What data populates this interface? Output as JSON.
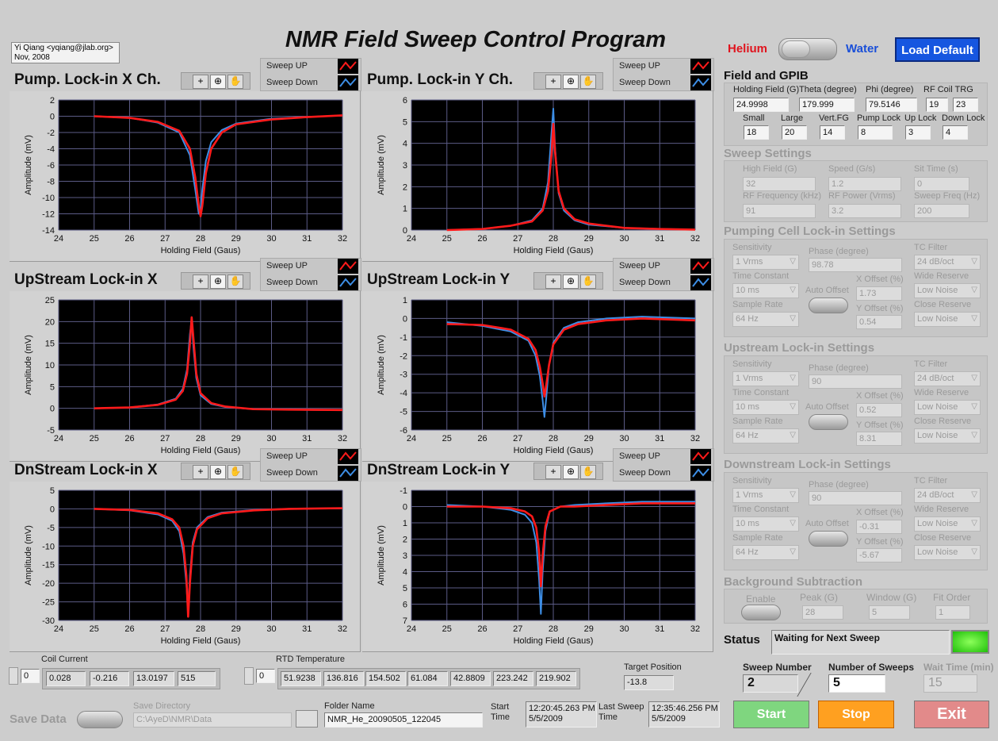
{
  "header": {
    "title": "NMR Field Sweep Control Program",
    "author": "Yi Qiang <yqiang@jlab.org>",
    "date": "Nov, 2008"
  },
  "mode": {
    "helium": "Helium",
    "water": "Water",
    "load_default": "Load Default"
  },
  "plots": [
    {
      "title": "Pump. Lock-in X Ch.",
      "xlabel": "Holding Field (Gaus)",
      "ylabel": "Amplitude (mV)",
      "xlim": [
        24,
        32
      ],
      "xticks": [
        24,
        25,
        26,
        27,
        28,
        29,
        30,
        31,
        32
      ],
      "ylim": [
        -14,
        2
      ],
      "yticks": [
        -14,
        -12,
        -10,
        -8,
        -6,
        -4,
        -2,
        0,
        2
      ],
      "x": [
        25,
        26,
        26.8,
        27.4,
        27.7,
        27.85,
        27.95,
        28,
        28.05,
        28.15,
        28.3,
        28.6,
        29,
        30,
        31,
        32
      ],
      "series": [
        {
          "name": "Sweep UP",
          "color": "#ff1a1a",
          "values": [
            0,
            -0.2,
            -0.7,
            -1.8,
            -4,
            -7.5,
            -11,
            -12.3,
            -11,
            -7,
            -4,
            -2,
            -1,
            -0.4,
            -0.1,
            0.1
          ]
        },
        {
          "name": "Sweep Down",
          "color": "#3d8ee6",
          "values": [
            0,
            -0.2,
            -0.8,
            -2,
            -4.8,
            -9,
            -12,
            -11.5,
            -9,
            -5.5,
            -3.2,
            -1.7,
            -0.9,
            -0.3,
            -0.1,
            0.1
          ]
        }
      ]
    },
    {
      "title": "Pump. Lock-in Y Ch.",
      "xlabel": "Holding Field (Gaus)",
      "ylabel": "Amplitude (mV)",
      "xlim": [
        24,
        32
      ],
      "xticks": [
        24,
        25,
        26,
        27,
        28,
        29,
        30,
        31,
        32
      ],
      "ylim": [
        0,
        6
      ],
      "yticks": [
        0,
        1,
        2,
        3,
        4,
        5,
        6
      ],
      "x": [
        25,
        26,
        26.8,
        27.4,
        27.7,
        27.85,
        27.95,
        28,
        28.05,
        28.15,
        28.3,
        28.6,
        29,
        30,
        31,
        32
      ],
      "series": [
        {
          "name": "Sweep UP",
          "color": "#ff1a1a",
          "values": [
            0,
            0.05,
            0.2,
            0.4,
            0.9,
            1.8,
            3.5,
            4.9,
            3.6,
            1.8,
            1,
            0.5,
            0.3,
            0.1,
            0.05,
            0.02
          ]
        },
        {
          "name": "Sweep Down",
          "color": "#3d8ee6",
          "values": [
            0,
            0.05,
            0.2,
            0.45,
            1,
            2.2,
            4.5,
            5.6,
            3.8,
            1.7,
            0.9,
            0.45,
            0.25,
            0.1,
            0.05,
            0.02
          ]
        }
      ]
    },
    {
      "title": "UpStream Lock-in X",
      "xlabel": "Holding Field (Gaus)",
      "ylabel": "Amplitude (mV)",
      "xlim": [
        24,
        32
      ],
      "xticks": [
        24,
        25,
        26,
        27,
        28,
        29,
        30,
        31,
        32
      ],
      "ylim": [
        -5,
        25
      ],
      "yticks": [
        -5,
        0,
        5,
        10,
        15,
        20,
        25
      ],
      "x": [
        25,
        26,
        26.8,
        27.3,
        27.5,
        27.62,
        27.7,
        27.75,
        27.8,
        27.88,
        28,
        28.3,
        28.7,
        29.5,
        30.5,
        32
      ],
      "series": [
        {
          "name": "Sweep UP",
          "color": "#ff1a1a",
          "values": [
            0,
            0.2,
            0.8,
            2,
            4,
            8,
            15,
            21,
            16,
            8,
            3.5,
            1.2,
            0.4,
            -0.2,
            -0.3,
            -0.4
          ]
        },
        {
          "name": "Sweep Down",
          "color": "#3d8ee6",
          "values": [
            0,
            0.2,
            0.9,
            2.2,
            4.5,
            9,
            17,
            20.5,
            14,
            7,
            3,
            1,
            0.3,
            -0.2,
            -0.3,
            -0.4
          ]
        }
      ]
    },
    {
      "title": "UpStream Lock-in Y",
      "xlabel": "Holding Field (Gaus)",
      "ylabel": "Amplitude (mV)",
      "xlim": [
        24,
        32
      ],
      "xticks": [
        24,
        25,
        26,
        27,
        28,
        29,
        30,
        31,
        32
      ],
      "ylim": [
        -6,
        1
      ],
      "yticks": [
        -6,
        -5,
        -4,
        -3,
        -2,
        -1,
        0,
        1
      ],
      "x": [
        25,
        26,
        26.8,
        27.3,
        27.5,
        27.62,
        27.7,
        27.75,
        27.8,
        27.88,
        28,
        28.3,
        28.7,
        29.5,
        30.5,
        32
      ],
      "series": [
        {
          "name": "Sweep UP",
          "color": "#ff1a1a",
          "values": [
            -0.3,
            -0.35,
            -0.6,
            -1.1,
            -1.7,
            -2.6,
            -3.5,
            -4.2,
            -3.6,
            -2.5,
            -1.4,
            -0.6,
            -0.3,
            -0.1,
            0,
            -0.1
          ]
        },
        {
          "name": "Sweep Down",
          "color": "#3d8ee6",
          "values": [
            -0.2,
            -0.4,
            -0.7,
            -1.2,
            -2,
            -3.1,
            -4.4,
            -5.3,
            -4.3,
            -2.5,
            -1.3,
            -0.5,
            -0.2,
            0,
            0.1,
            0
          ]
        }
      ]
    },
    {
      "title": "DnStream Lock-in X",
      "xlabel": "Holding Field (Gaus)",
      "ylabel": "Amplitude (mV)",
      "xlim": [
        24,
        32
      ],
      "xticks": [
        24,
        25,
        26,
        27,
        28,
        29,
        30,
        31,
        32
      ],
      "ylim": [
        -30,
        5
      ],
      "yticks": [
        -30,
        -25,
        -20,
        -15,
        -10,
        -5,
        0,
        5
      ],
      "x": [
        25,
        26,
        26.8,
        27.2,
        27.4,
        27.52,
        27.6,
        27.65,
        27.7,
        27.78,
        27.9,
        28.2,
        28.6,
        29.5,
        30.5,
        32
      ],
      "series": [
        {
          "name": "Sweep UP",
          "color": "#ff1a1a",
          "values": [
            0,
            -0.3,
            -1.2,
            -2.8,
            -5,
            -10,
            -18,
            -29,
            -20,
            -10,
            -5.5,
            -2.5,
            -1.2,
            -0.4,
            0,
            0.2
          ]
        },
        {
          "name": "Sweep Down",
          "color": "#3d8ee6",
          "values": [
            0,
            -0.4,
            -1.5,
            -3.2,
            -6,
            -12,
            -20,
            -28,
            -18,
            -9,
            -5,
            -2.2,
            -1,
            -0.3,
            0,
            0.2
          ]
        }
      ]
    },
    {
      "title": "DnStream Lock-in Y",
      "xlabel": "Holding Field (Gaus)",
      "ylabel": "Amplitude (mV)",
      "xlim": [
        24,
        32
      ],
      "xticks": [
        24,
        25,
        26,
        27,
        28,
        29,
        30,
        31,
        32
      ],
      "ylim": [
        7,
        -1
      ],
      "yticks": [
        7,
        6,
        5,
        4,
        3,
        2,
        1,
        0,
        -1
      ],
      "x": [
        25,
        26,
        26.8,
        27.2,
        27.4,
        27.52,
        27.6,
        27.65,
        27.7,
        27.78,
        27.9,
        28.2,
        28.6,
        29.5,
        30.5,
        32
      ],
      "series": [
        {
          "name": "Sweep UP",
          "color": "#ff1a1a",
          "values": [
            0,
            0,
            0.1,
            0.3,
            0.6,
            1.3,
            2.8,
            4.9,
            3,
            1.2,
            0.3,
            0,
            0,
            -0.1,
            -0.2,
            -0.2
          ]
        },
        {
          "name": "Sweep Down",
          "color": "#3d8ee6",
          "values": [
            -0.1,
            0,
            0.2,
            0.5,
            1,
            2.2,
            4.5,
            6.6,
            4,
            1.5,
            0.3,
            0,
            -0.1,
            -0.2,
            -0.3,
            -0.3
          ]
        }
      ]
    }
  ],
  "field_gpib": {
    "title": "Field and GPIB",
    "holding_field": {
      "label": "Holding Field (G)",
      "value": "24.9998"
    },
    "theta": {
      "label": "Theta (degree)",
      "value": "179.999"
    },
    "phi": {
      "label": "Phi (degree)",
      "value": "79.5146"
    },
    "rf_coil_trg": {
      "label": "RF Coil TRG",
      "values": [
        "19",
        "23"
      ]
    },
    "small": {
      "label": "Small",
      "value": "18"
    },
    "large": {
      "label": "Large",
      "value": "20"
    },
    "vert_fg": {
      "label": "Vert.FG",
      "value": "14"
    },
    "pump_lock": {
      "label": "Pump Lock",
      "value": "8"
    },
    "up_lock": {
      "label": "Up Lock",
      "value": "3"
    },
    "down_lock": {
      "label": "Down Lock",
      "value": "4"
    }
  },
  "sweep_settings": {
    "title": "Sweep Settings",
    "fields": [
      {
        "label": "High Field (G)",
        "value": "32"
      },
      {
        "label": "Speed (G/s)",
        "value": "1.2"
      },
      {
        "label": "Sit Time (s)",
        "value": "0"
      },
      {
        "label": "RF Frequency (kHz)",
        "value": "91"
      },
      {
        "label": "RF Power (Vrms)",
        "value": "3.2"
      },
      {
        "label": "Sweep Freq (Hz)",
        "value": "200"
      }
    ]
  },
  "lockins": [
    {
      "title": "Pumping Cell Lock-in Settings",
      "sensitivity": {
        "label": "Sensitivity",
        "value": "1 Vrms"
      },
      "phase": {
        "label": "Phase (degree)",
        "value": "98.78"
      },
      "tc_filter": {
        "label": "TC Filter",
        "value": "24 dB/oct"
      },
      "time_constant": {
        "label": "Time Constant",
        "value": "10 ms"
      },
      "auto_offset": "Auto Offset",
      "x_offset": {
        "label": "X Offset (%)",
        "value": "1.73"
      },
      "wide_reserve": {
        "label": "Wide Reserve",
        "value": "Low Noise"
      },
      "sample_rate": {
        "label": "Sample Rate",
        "value": "64 Hz"
      },
      "y_offset": {
        "label": "Y Offset (%)",
        "value": "0.54"
      },
      "close_reserve": {
        "label": "Close Reserve",
        "value": "Low Noise"
      }
    },
    {
      "title": "Upstream Lock-in Settings",
      "sensitivity": {
        "label": "Sensitivity",
        "value": "1 Vrms"
      },
      "phase": {
        "label": "Phase (degree)",
        "value": "90"
      },
      "tc_filter": {
        "label": "TC Filter",
        "value": "24 dB/oct"
      },
      "time_constant": {
        "label": "Time Constant",
        "value": "10 ms"
      },
      "auto_offset": "Auto Offset",
      "x_offset": {
        "label": "X Offset (%)",
        "value": "0.52"
      },
      "wide_reserve": {
        "label": "Wide Reserve",
        "value": "Low Noise"
      },
      "sample_rate": {
        "label": "Sample Rate",
        "value": "64 Hz"
      },
      "y_offset": {
        "label": "Y Offset (%)",
        "value": "8.31"
      },
      "close_reserve": {
        "label": "Close Reserve",
        "value": "Low Noise"
      }
    },
    {
      "title": "Downstream Lock-in Settings",
      "sensitivity": {
        "label": "Sensitivity",
        "value": "1 Vrms"
      },
      "phase": {
        "label": "Phase (degree)",
        "value": "90"
      },
      "tc_filter": {
        "label": "TC Filter",
        "value": "24 dB/oct"
      },
      "time_constant": {
        "label": "Time Constant",
        "value": "10 ms"
      },
      "auto_offset": "Auto Offset",
      "x_offset": {
        "label": "X Offset (%)",
        "value": "-0.31"
      },
      "wide_reserve": {
        "label": "Wide Reserve",
        "value": "Low Noise"
      },
      "sample_rate": {
        "label": "Sample Rate",
        "value": "64 Hz"
      },
      "y_offset": {
        "label": "Y Offset (%)",
        "value": "-5.67"
      },
      "close_reserve": {
        "label": "Close Reserve",
        "value": "Low Noise"
      }
    }
  ],
  "background": {
    "title": "Background Subtraction",
    "enable": "Enable",
    "peak": {
      "label": "Peak (G)",
      "value": "28"
    },
    "window": {
      "label": "Window (G)",
      "value": "5"
    },
    "fit_order": {
      "label": "Fit Order",
      "value": "1"
    }
  },
  "status": {
    "label": "Status",
    "value": "Waiting for Next Sweep"
  },
  "sweep": {
    "sweep_number": {
      "label": "Sweep Number",
      "value": "2"
    },
    "number_of_sweeps": {
      "label": "Number of Sweeps",
      "value": "5"
    },
    "wait_time": {
      "label": "Wait Time (min)",
      "value": "15"
    }
  },
  "buttons": {
    "start": "Start",
    "stop": "Stop",
    "exit": "Exit"
  },
  "coil_current": {
    "label": "Coil Current",
    "index": "0",
    "values": [
      "0.028",
      "-0.216",
      "13.0197",
      "515"
    ]
  },
  "rtd_temperature": {
    "label": "RTD Temperature",
    "index": "0",
    "values": [
      "51.9238",
      "136.816",
      "154.502",
      "61.084",
      "42.8809",
      "223.242",
      "219.902"
    ]
  },
  "target_position": {
    "label": "Target Position",
    "value": "-13.8"
  },
  "save": {
    "save_data": "Save Data",
    "directory_label": "Save Directory",
    "directory": "C:\\AyeD\\NMR\\Data",
    "folder_label": "Folder Name",
    "folder": "NMR_He_20090505_122045"
  },
  "start_time": {
    "label": "Start Time",
    "time": "12:20:45.263 PM",
    "date": "5/5/2009"
  },
  "last_sweep_time": {
    "label": "Last Sweep Time",
    "time": "12:35:46.256 PM",
    "date": "5/5/2009"
  }
}
